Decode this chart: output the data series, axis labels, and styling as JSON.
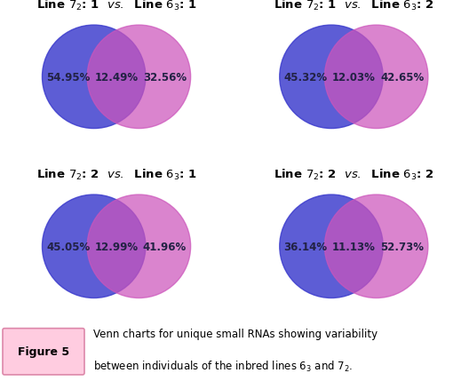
{
  "panels": [
    {
      "title_sub1": "2",
      "title_num1": "1",
      "title_sub2": "3",
      "title_num2": "1",
      "left_pct": "54.95%",
      "mid_pct": "12.49%",
      "right_pct": "32.56%"
    },
    {
      "title_sub1": "2",
      "title_num1": "1",
      "title_sub2": "3",
      "title_num2": "2",
      "left_pct": "45.32%",
      "mid_pct": "12.03%",
      "right_pct": "42.65%"
    },
    {
      "title_sub1": "2",
      "title_num1": "2",
      "title_sub2": "3",
      "title_num2": "1",
      "left_pct": "45.05%",
      "mid_pct": "12.99%",
      "right_pct": "41.96%"
    },
    {
      "title_sub1": "2",
      "title_num1": "2",
      "title_sub2": "3",
      "title_num2": "2",
      "left_pct": "36.14%",
      "mid_pct": "11.13%",
      "right_pct": "52.73%"
    }
  ],
  "blue_color": "#3939CC",
  "pink_color": "#CC55BB",
  "blue_alpha": 0.82,
  "pink_alpha": 0.72,
  "text_color": "#222244",
  "bg_color": "#FFFFFF",
  "figure_label": "Figure 5",
  "label_bg": "#FFCCE0",
  "label_border": "#DD88AA"
}
